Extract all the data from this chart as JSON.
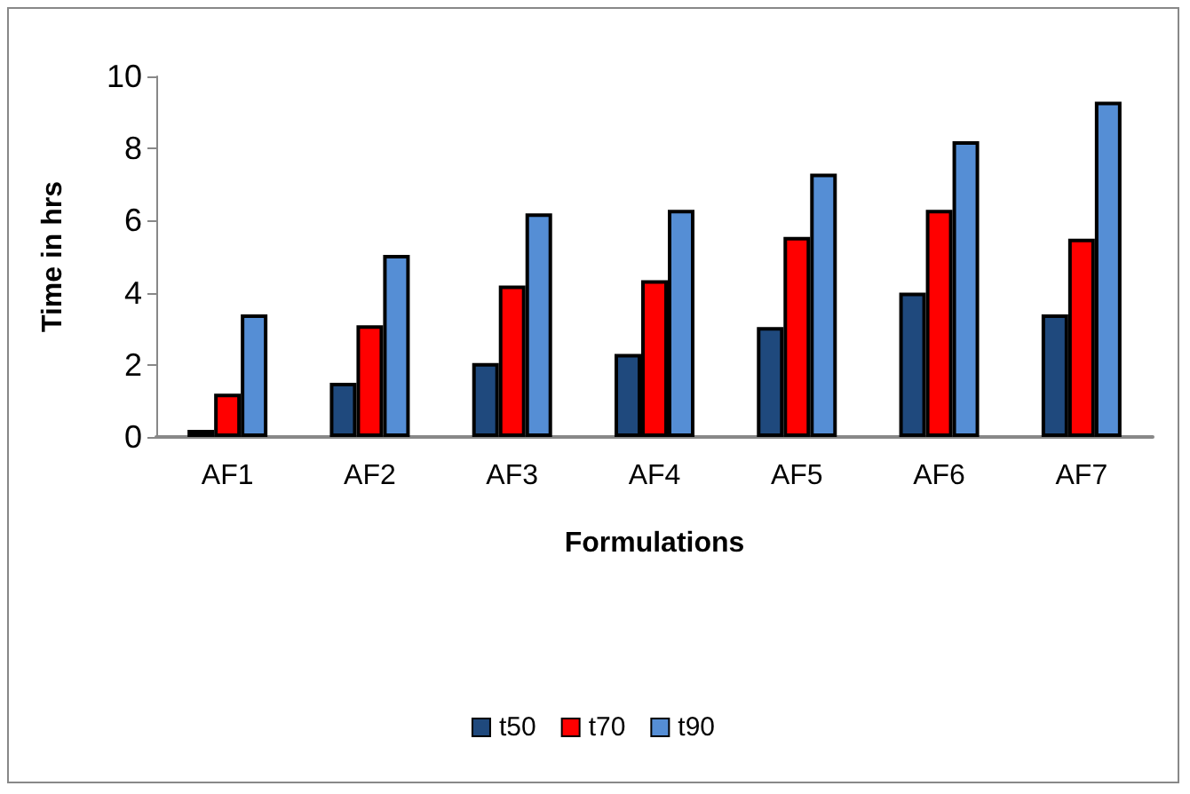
{
  "chart_data": {
    "type": "bar",
    "xlabel": "Formulations",
    "ylabel": "Time in hrs",
    "categories": [
      "AF1",
      "AF2",
      "AF3",
      "AF4",
      "AF5",
      "AF6",
      "AF7"
    ],
    "series": [
      {
        "name": "t50",
        "color": "#1f497d",
        "values": [
          0.2,
          1.5,
          2.05,
          2.3,
          3.05,
          4.0,
          3.4
        ]
      },
      {
        "name": "t70",
        "color": "#ff0000",
        "values": [
          1.2,
          3.1,
          4.2,
          4.35,
          5.55,
          6.3,
          5.5
        ]
      },
      {
        "name": "t90",
        "color": "#558ed5",
        "values": [
          3.4,
          5.05,
          6.2,
          6.3,
          7.3,
          8.2,
          9.3
        ]
      }
    ],
    "ylim": [
      0,
      10
    ],
    "yticks": [
      0,
      2,
      4,
      6,
      8,
      10
    ],
    "grid": false,
    "legend": "bottom"
  }
}
